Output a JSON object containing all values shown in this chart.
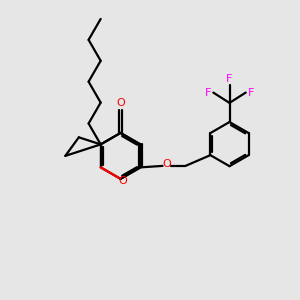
{
  "bg_color": "#e6e6e6",
  "bond_color": "#000000",
  "o_color": "#ff0000",
  "f_color": "#ff00ff",
  "bond_width": 1.6,
  "figsize": [
    3.0,
    3.0
  ],
  "dpi": 100,
  "xlim": [
    0,
    10
  ],
  "ylim": [
    0,
    10
  ]
}
